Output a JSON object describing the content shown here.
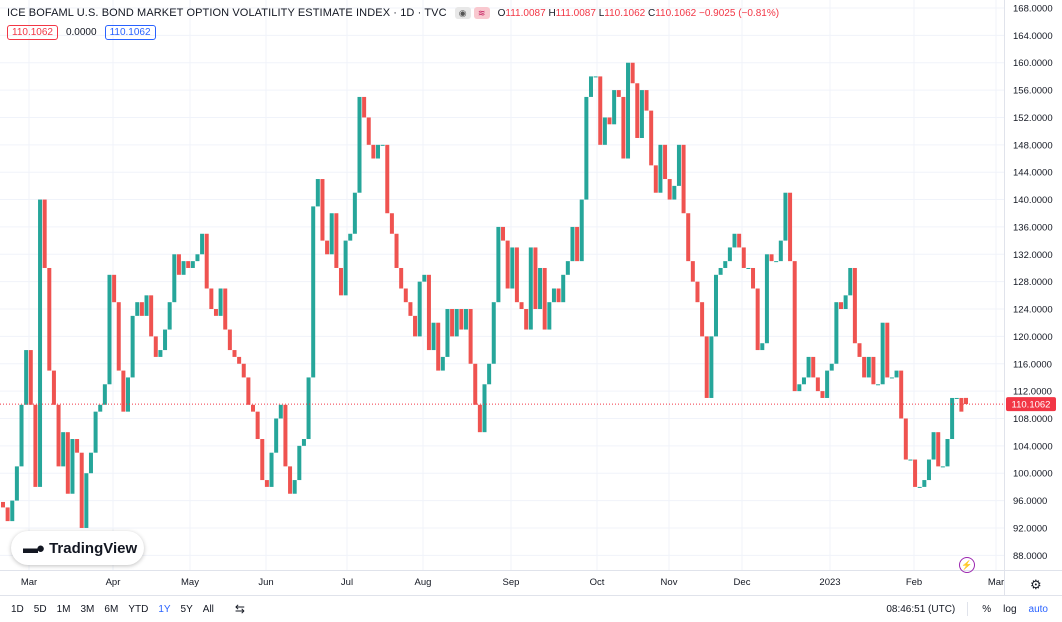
{
  "legend": {
    "title": "ICE BOFAML U.S. BOND MARKET OPTION VOLATILITY ESTIMATE INDEX · 1D · TVC",
    "eye_icon": "eye-icon",
    "alert_icon": "alert-icon",
    "open_label": "O",
    "open": "111.0087",
    "high_label": "H",
    "high": "111.0087",
    "low_label": "L",
    "low": "110.1062",
    "close_label": "C",
    "close": "110.1062",
    "change": "−0.9025 (−0.81%)"
  },
  "badges": {
    "price": "110.1062",
    "volume": "0.0000",
    "indicator": "110.1062"
  },
  "logo": {
    "text": "TradingView",
    "icon": "tradingview-logo-icon"
  },
  "toolbar": {
    "ranges": [
      "1D",
      "5D",
      "1M",
      "3M",
      "6M",
      "YTD",
      "1Y",
      "5Y",
      "All"
    ],
    "active_range": "1Y",
    "calendar_icon": "calendar-range-icon",
    "time": "08:46:51 (UTC)",
    "percent": "%",
    "log": "log",
    "auto": "auto",
    "settings_icon": "gear-icon",
    "flash_icon": "lightning-icon"
  },
  "colors": {
    "up": "#26a69a",
    "down": "#ef5350",
    "grid": "#f0f3fa",
    "price_line": "#f23645"
  },
  "chart_data": {
    "type": "candlestick",
    "title": "ICE BOFAML U.S. BOND MARKET OPTION VOLATILITY ESTIMATE INDEX · 1D · TVC",
    "ylim": [
      86.0,
      169.5
    ],
    "y_ticks": [
      "168.0000",
      "164.0000",
      "160.0000",
      "156.0000",
      "152.0000",
      "148.0000",
      "144.0000",
      "140.0000",
      "136.0000",
      "132.0000",
      "128.0000",
      "124.0000",
      "120.0000",
      "116.0000",
      "112.0000",
      "108.0000",
      "104.0000",
      "100.0000",
      "96.0000",
      "92.0000",
      "88.0000"
    ],
    "x_ticks": [
      "Mar",
      "Apr",
      "May",
      "Jun",
      "Jul",
      "Aug",
      "Sep",
      "Oct",
      "Nov",
      "Dec",
      "2023",
      "Feb",
      "Mar"
    ],
    "last_price": "110.1062",
    "grid": true,
    "legend_position": "top-left",
    "close_series": [
      95,
      93,
      96,
      101,
      110,
      118,
      110,
      98,
      140,
      130,
      115,
      110,
      101,
      106,
      97,
      105,
      103,
      92,
      100,
      103,
      109,
      110,
      113,
      129,
      125,
      115,
      109,
      114,
      123,
      125,
      123,
      126,
      120,
      117,
      118,
      121,
      125,
      132,
      129,
      131,
      130,
      131,
      132,
      135,
      127,
      124,
      123,
      127,
      121,
      118,
      117,
      116,
      114,
      110,
      109,
      105,
      99,
      98,
      103,
      108,
      110,
      101,
      97,
      99,
      104,
      105,
      114,
      139,
      143,
      134,
      132,
      138,
      130,
      126,
      134,
      135,
      141,
      155,
      152,
      148,
      146,
      148,
      148,
      138,
      135,
      130,
      127,
      125,
      123,
      120,
      128,
      129,
      118,
      122,
      115,
      117,
      124,
      120,
      124,
      121,
      124,
      116,
      110,
      106,
      113,
      116,
      125,
      136,
      134,
      127,
      133,
      125,
      124,
      121,
      133,
      124,
      130,
      121,
      125,
      127,
      125,
      129,
      131,
      136,
      131,
      140,
      155,
      158,
      158,
      148,
      152,
      151,
      156,
      155,
      146,
      160,
      157,
      149,
      156,
      153,
      145,
      141,
      148,
      143,
      140,
      142,
      148,
      138,
      131,
      128,
      125,
      120,
      111,
      120,
      129,
      130,
      131,
      133,
      135,
      133,
      130,
      130,
      127,
      118,
      119,
      132,
      131,
      131,
      134,
      141,
      131,
      112,
      113,
      114,
      117,
      114,
      112,
      111,
      115,
      116,
      125,
      124,
      126,
      130,
      119,
      117,
      114,
      117,
      113,
      113,
      122,
      114,
      114,
      115,
      108,
      102,
      102,
      98,
      98,
      99,
      102,
      106,
      101,
      101,
      105,
      111,
      111,
      109,
      110.1062
    ]
  }
}
